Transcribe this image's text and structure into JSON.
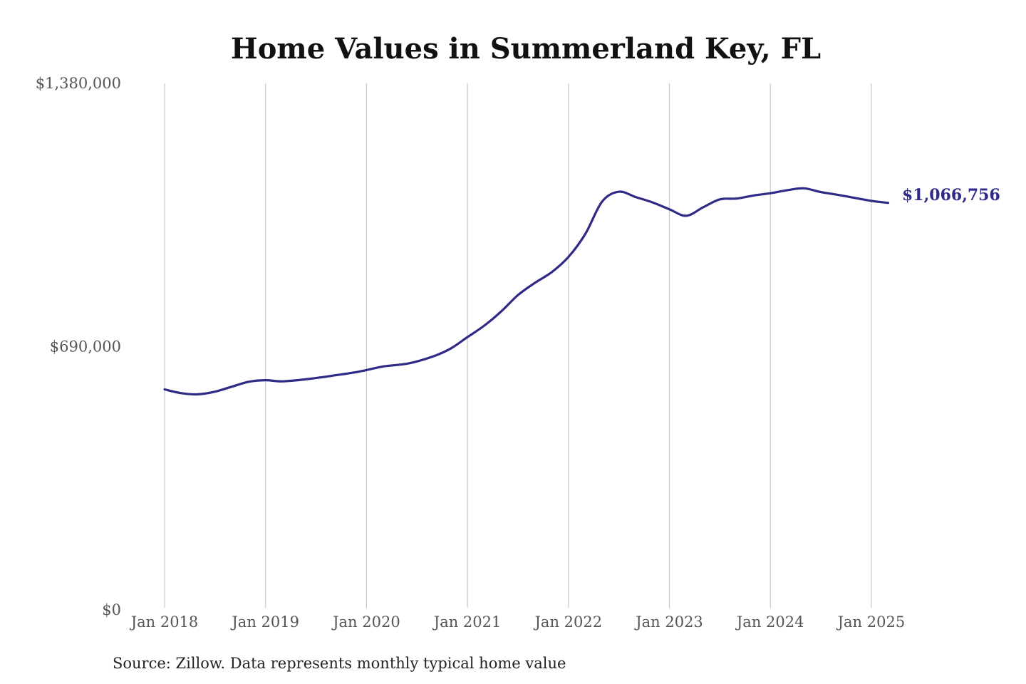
{
  "chart_data": {
    "type": "line",
    "title": "Home Values in Summerland Key, FL",
    "source": "Source: Zillow. Data represents monthly typical home value",
    "xlabel": "",
    "ylabel": "",
    "ylim": [
      0,
      1380000
    ],
    "y_ticks": [
      {
        "value": 0,
        "label": "$0"
      },
      {
        "value": 690000,
        "label": "$690,000"
      },
      {
        "value": 1380000,
        "label": "$1,380,000"
      }
    ],
    "x_ticks": [
      {
        "value": "2018-01",
        "label": "Jan 2018"
      },
      {
        "value": "2019-01",
        "label": "Jan 2019"
      },
      {
        "value": "2020-01",
        "label": "Jan 2020"
      },
      {
        "value": "2021-01",
        "label": "Jan 2021"
      },
      {
        "value": "2022-01",
        "label": "Jan 2022"
      },
      {
        "value": "2023-01",
        "label": "Jan 2023"
      },
      {
        "value": "2024-01",
        "label": "Jan 2024"
      },
      {
        "value": "2025-01",
        "label": "Jan 2025"
      }
    ],
    "grid": {
      "vertical": true,
      "horizontal": false
    },
    "line_color": "#2e2a85",
    "end_label": "$1,066,756",
    "series": [
      {
        "x": [
          "2018-01",
          "2018-03",
          "2018-05",
          "2018-07",
          "2018-09",
          "2018-11",
          "2019-01",
          "2019-03",
          "2019-06",
          "2019-09",
          "2019-12",
          "2020-03",
          "2020-06",
          "2020-09",
          "2020-11",
          "2021-01",
          "2021-03",
          "2021-05",
          "2021-07",
          "2021-09",
          "2021-11",
          "2022-01",
          "2022-03",
          "2022-05",
          "2022-07",
          "2022-09",
          "2022-11",
          "2023-01",
          "2023-03",
          "2023-05",
          "2023-07",
          "2023-09",
          "2023-11",
          "2024-01",
          "2024-03",
          "2024-05",
          "2024-07",
          "2024-09",
          "2024-11",
          "2025-01",
          "2025-03"
        ],
        "values": [
          578000,
          568000,
          565000,
          572000,
          585000,
          598000,
          602000,
          599000,
          605000,
          614000,
          624000,
          638000,
          646000,
          665000,
          685000,
          715000,
          745000,
          782000,
          825000,
          857000,
          885000,
          925000,
          985000,
          1070000,
          1096000,
          1082000,
          1068000,
          1050000,
          1033000,
          1055000,
          1076000,
          1078000,
          1086000,
          1092000,
          1100000,
          1105000,
          1095000,
          1088000,
          1080000,
          1072000,
          1066756
        ]
      }
    ]
  }
}
